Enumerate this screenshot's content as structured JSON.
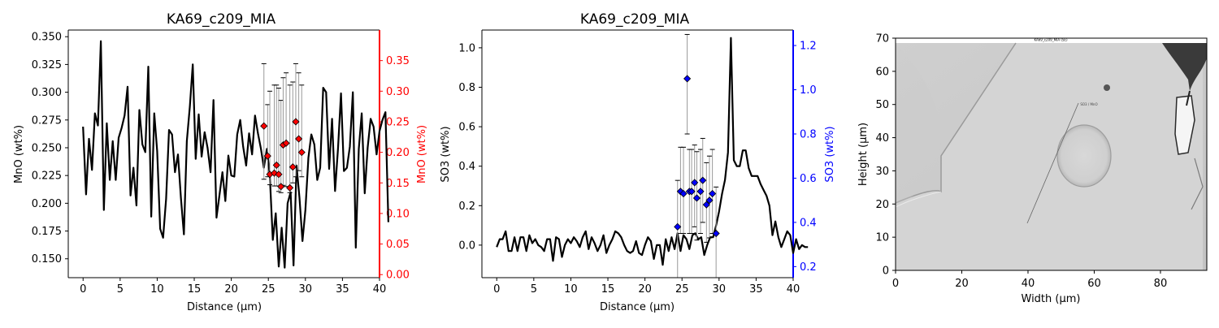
{
  "colors": {
    "line": "#000000",
    "mno_accent": "#ff0000",
    "so3_accent": "#0000ff",
    "errorbar": "#999999"
  },
  "chart_data": [
    {
      "type": "line",
      "title": "KA69_c209_MIA",
      "xlabel": "Distance (µm)",
      "ylabel": "MnO (wt%)",
      "ylabel_right": "MnO (wt%)",
      "xlim": [
        -2,
        40
      ],
      "ylim": [
        0.133,
        0.356
      ],
      "ylim_right": [
        -0.005,
        0.4
      ],
      "xticks": [
        "0",
        "5",
        "10",
        "15",
        "20",
        "25",
        "30",
        "35",
        "40"
      ],
      "yticks": [
        "0.150",
        "0.175",
        "0.200",
        "0.225",
        "0.250",
        "0.275",
        "0.300",
        "0.325",
        "0.350"
      ],
      "yticks_right": [
        "0.00",
        "0.05",
        "0.10",
        "0.15",
        "0.20",
        "0.25",
        "0.30",
        "0.35"
      ],
      "line_x_step": 0.4,
      "line": [
        0.269,
        0.208,
        0.258,
        0.23,
        0.281,
        0.27,
        0.346,
        0.194,
        0.272,
        0.221,
        0.256,
        0.221,
        0.259,
        0.268,
        0.279,
        0.305,
        0.207,
        0.232,
        0.198,
        0.284,
        0.253,
        0.246,
        0.323,
        0.188,
        0.281,
        0.247,
        0.177,
        0.169,
        0.204,
        0.266,
        0.262,
        0.228,
        0.244,
        0.205,
        0.172,
        0.256,
        0.287,
        0.325,
        0.24,
        0.28,
        0.242,
        0.264,
        0.25,
        0.228,
        0.293,
        0.187,
        0.207,
        0.228,
        0.202,
        0.243,
        0.225,
        0.224,
        0.262,
        0.275,
        0.251,
        0.234,
        0.263,
        0.244,
        0.279,
        0.263,
        0.249,
        0.232,
        0.249,
        0.225,
        0.167,
        0.191,
        0.143,
        0.178,
        0.142,
        0.2,
        0.21,
        0.144,
        0.234,
        0.205,
        0.166,
        0.194,
        0.241,
        0.262,
        0.253,
        0.221,
        0.232,
        0.304,
        0.3,
        0.231,
        0.276,
        0.211,
        0.249,
        0.299,
        0.229,
        0.232,
        0.251,
        0.3,
        0.16,
        0.249,
        0.281,
        0.209,
        0.25,
        0.276,
        0.269,
        0.244,
        0.265,
        0.275,
        0.282,
        0.183
      ],
      "points": [
        {
          "x": 24.4,
          "y": 0.243,
          "lo": 0.156,
          "hi": 0.345
        },
        {
          "x": 24.9,
          "y": 0.194,
          "lo": 0.16,
          "hi": 0.278
        },
        {
          "x": 25.2,
          "y": 0.164,
          "lo": 0.147,
          "hi": 0.3
        },
        {
          "x": 25.8,
          "y": 0.166,
          "lo": 0.145,
          "hi": 0.31
        },
        {
          "x": 26.1,
          "y": 0.179,
          "lo": 0.145,
          "hi": 0.31
        },
        {
          "x": 26.4,
          "y": 0.164,
          "lo": 0.136,
          "hi": 0.305
        },
        {
          "x": 26.7,
          "y": 0.144,
          "lo": 0.134,
          "hi": 0.285
        },
        {
          "x": 27.0,
          "y": 0.212,
          "lo": 0.146,
          "hi": 0.322
        },
        {
          "x": 27.4,
          "y": 0.215,
          "lo": 0.144,
          "hi": 0.33
        },
        {
          "x": 27.9,
          "y": 0.142,
          "lo": 0.134,
          "hi": 0.31
        },
        {
          "x": 28.3,
          "y": 0.176,
          "lo": 0.15,
          "hi": 0.315
        },
        {
          "x": 28.7,
          "y": 0.25,
          "lo": 0.16,
          "hi": 0.345
        },
        {
          "x": 29.1,
          "y": 0.222,
          "lo": 0.17,
          "hi": 0.33
        },
        {
          "x": 29.5,
          "y": 0.2,
          "lo": 0.16,
          "hi": 0.31
        }
      ]
    },
    {
      "type": "line",
      "title": "KA69_c209_MIA",
      "xlabel": "Distance (µm)",
      "ylabel": "SO3 (wt%)",
      "ylabel_right": "SO3 (wt%)",
      "xlim": [
        -2,
        40
      ],
      "ylim": [
        -0.165,
        1.09
      ],
      "ylim_right": [
        0.15,
        1.27
      ],
      "xticks": [
        "0",
        "5",
        "10",
        "15",
        "20",
        "25",
        "30",
        "35",
        "40"
      ],
      "yticks": [
        "0.0",
        "0.2",
        "0.4",
        "0.6",
        "0.8",
        "1.0"
      ],
      "yticks_right": [
        "0.2",
        "0.4",
        "0.6",
        "0.8",
        "1.0",
        "1.2"
      ],
      "line_x_step": 0.4,
      "line": [
        -0.01,
        0.03,
        0.03,
        0.07,
        -0.03,
        -0.03,
        0.04,
        -0.03,
        0.04,
        0.04,
        -0.03,
        0.05,
        0.01,
        0.03,
        0.0,
        -0.01,
        -0.03,
        0.03,
        0.03,
        -0.08,
        0.04,
        0.03,
        -0.06,
        0.0,
        0.03,
        0.01,
        0.04,
        0.02,
        -0.01,
        0.04,
        0.07,
        -0.02,
        0.04,
        0.01,
        -0.03,
        0.0,
        0.05,
        -0.04,
        0.0,
        0.03,
        0.07,
        0.06,
        0.04,
        0.0,
        -0.03,
        -0.04,
        -0.03,
        0.02,
        -0.04,
        -0.05,
        0.0,
        0.04,
        0.02,
        -0.07,
        0.0,
        0.0,
        -0.1,
        0.03,
        -0.03,
        0.04,
        -0.02,
        0.06,
        -0.03,
        0.05,
        0.03,
        -0.02,
        0.05,
        0.06,
        0.03,
        0.04,
        -0.05,
        0.0,
        0.04,
        0.04,
        0.1,
        0.17,
        0.26,
        0.33,
        0.47,
        1.05,
        0.43,
        0.4,
        0.4,
        0.48,
        0.48,
        0.39,
        0.35,
        0.35,
        0.35,
        0.31,
        0.28,
        0.25,
        0.2,
        0.05,
        0.12,
        0.04,
        -0.01,
        0.03,
        0.07,
        0.05,
        -0.04,
        0.03,
        -0.02,
        0.0,
        -0.01,
        -0.01
      ],
      "points": [
        {
          "x": 24.4,
          "y": 0.38,
          "lo": 0.15,
          "hi": 0.59
        },
        {
          "x": 24.8,
          "y": 0.54,
          "lo": 0.35,
          "hi": 0.74
        },
        {
          "x": 25.2,
          "y": 0.53,
          "lo": 0.35,
          "hi": 0.74
        },
        {
          "x": 25.7,
          "y": 1.05,
          "lo": 0.8,
          "hi": 1.25
        },
        {
          "x": 26.0,
          "y": 0.54,
          "lo": 0.35,
          "hi": 0.73
        },
        {
          "x": 26.3,
          "y": 0.54,
          "lo": 0.35,
          "hi": 0.73
        },
        {
          "x": 26.7,
          "y": 0.58,
          "lo": 0.38,
          "hi": 0.75
        },
        {
          "x": 27.0,
          "y": 0.51,
          "lo": 0.32,
          "hi": 0.72
        },
        {
          "x": 27.5,
          "y": 0.54,
          "lo": 0.35,
          "hi": 0.73
        },
        {
          "x": 27.8,
          "y": 0.59,
          "lo": 0.4,
          "hi": 0.78
        },
        {
          "x": 28.3,
          "y": 0.48,
          "lo": 0.31,
          "hi": 0.67
        },
        {
          "x": 28.7,
          "y": 0.5,
          "lo": 0.33,
          "hi": 0.7
        },
        {
          "x": 29.1,
          "y": 0.53,
          "lo": 0.35,
          "hi": 0.73
        },
        {
          "x": 29.6,
          "y": 0.35,
          "lo": 0.15,
          "hi": 0.56
        }
      ]
    },
    {
      "type": "image",
      "xlabel": "Width (µm)",
      "ylabel": "Height (µm)",
      "xlim": [
        0,
        94
      ],
      "ylim": [
        0,
        70
      ],
      "xticks": [
        "0",
        "20",
        "40",
        "60",
        "80"
      ],
      "yticks": [
        "0",
        "10",
        "20",
        "30",
        "40",
        "50",
        "60",
        "70"
      ],
      "image_title": "KA69_c209_MIA (SE)",
      "image_annotation": "SO3 / MnO"
    }
  ]
}
